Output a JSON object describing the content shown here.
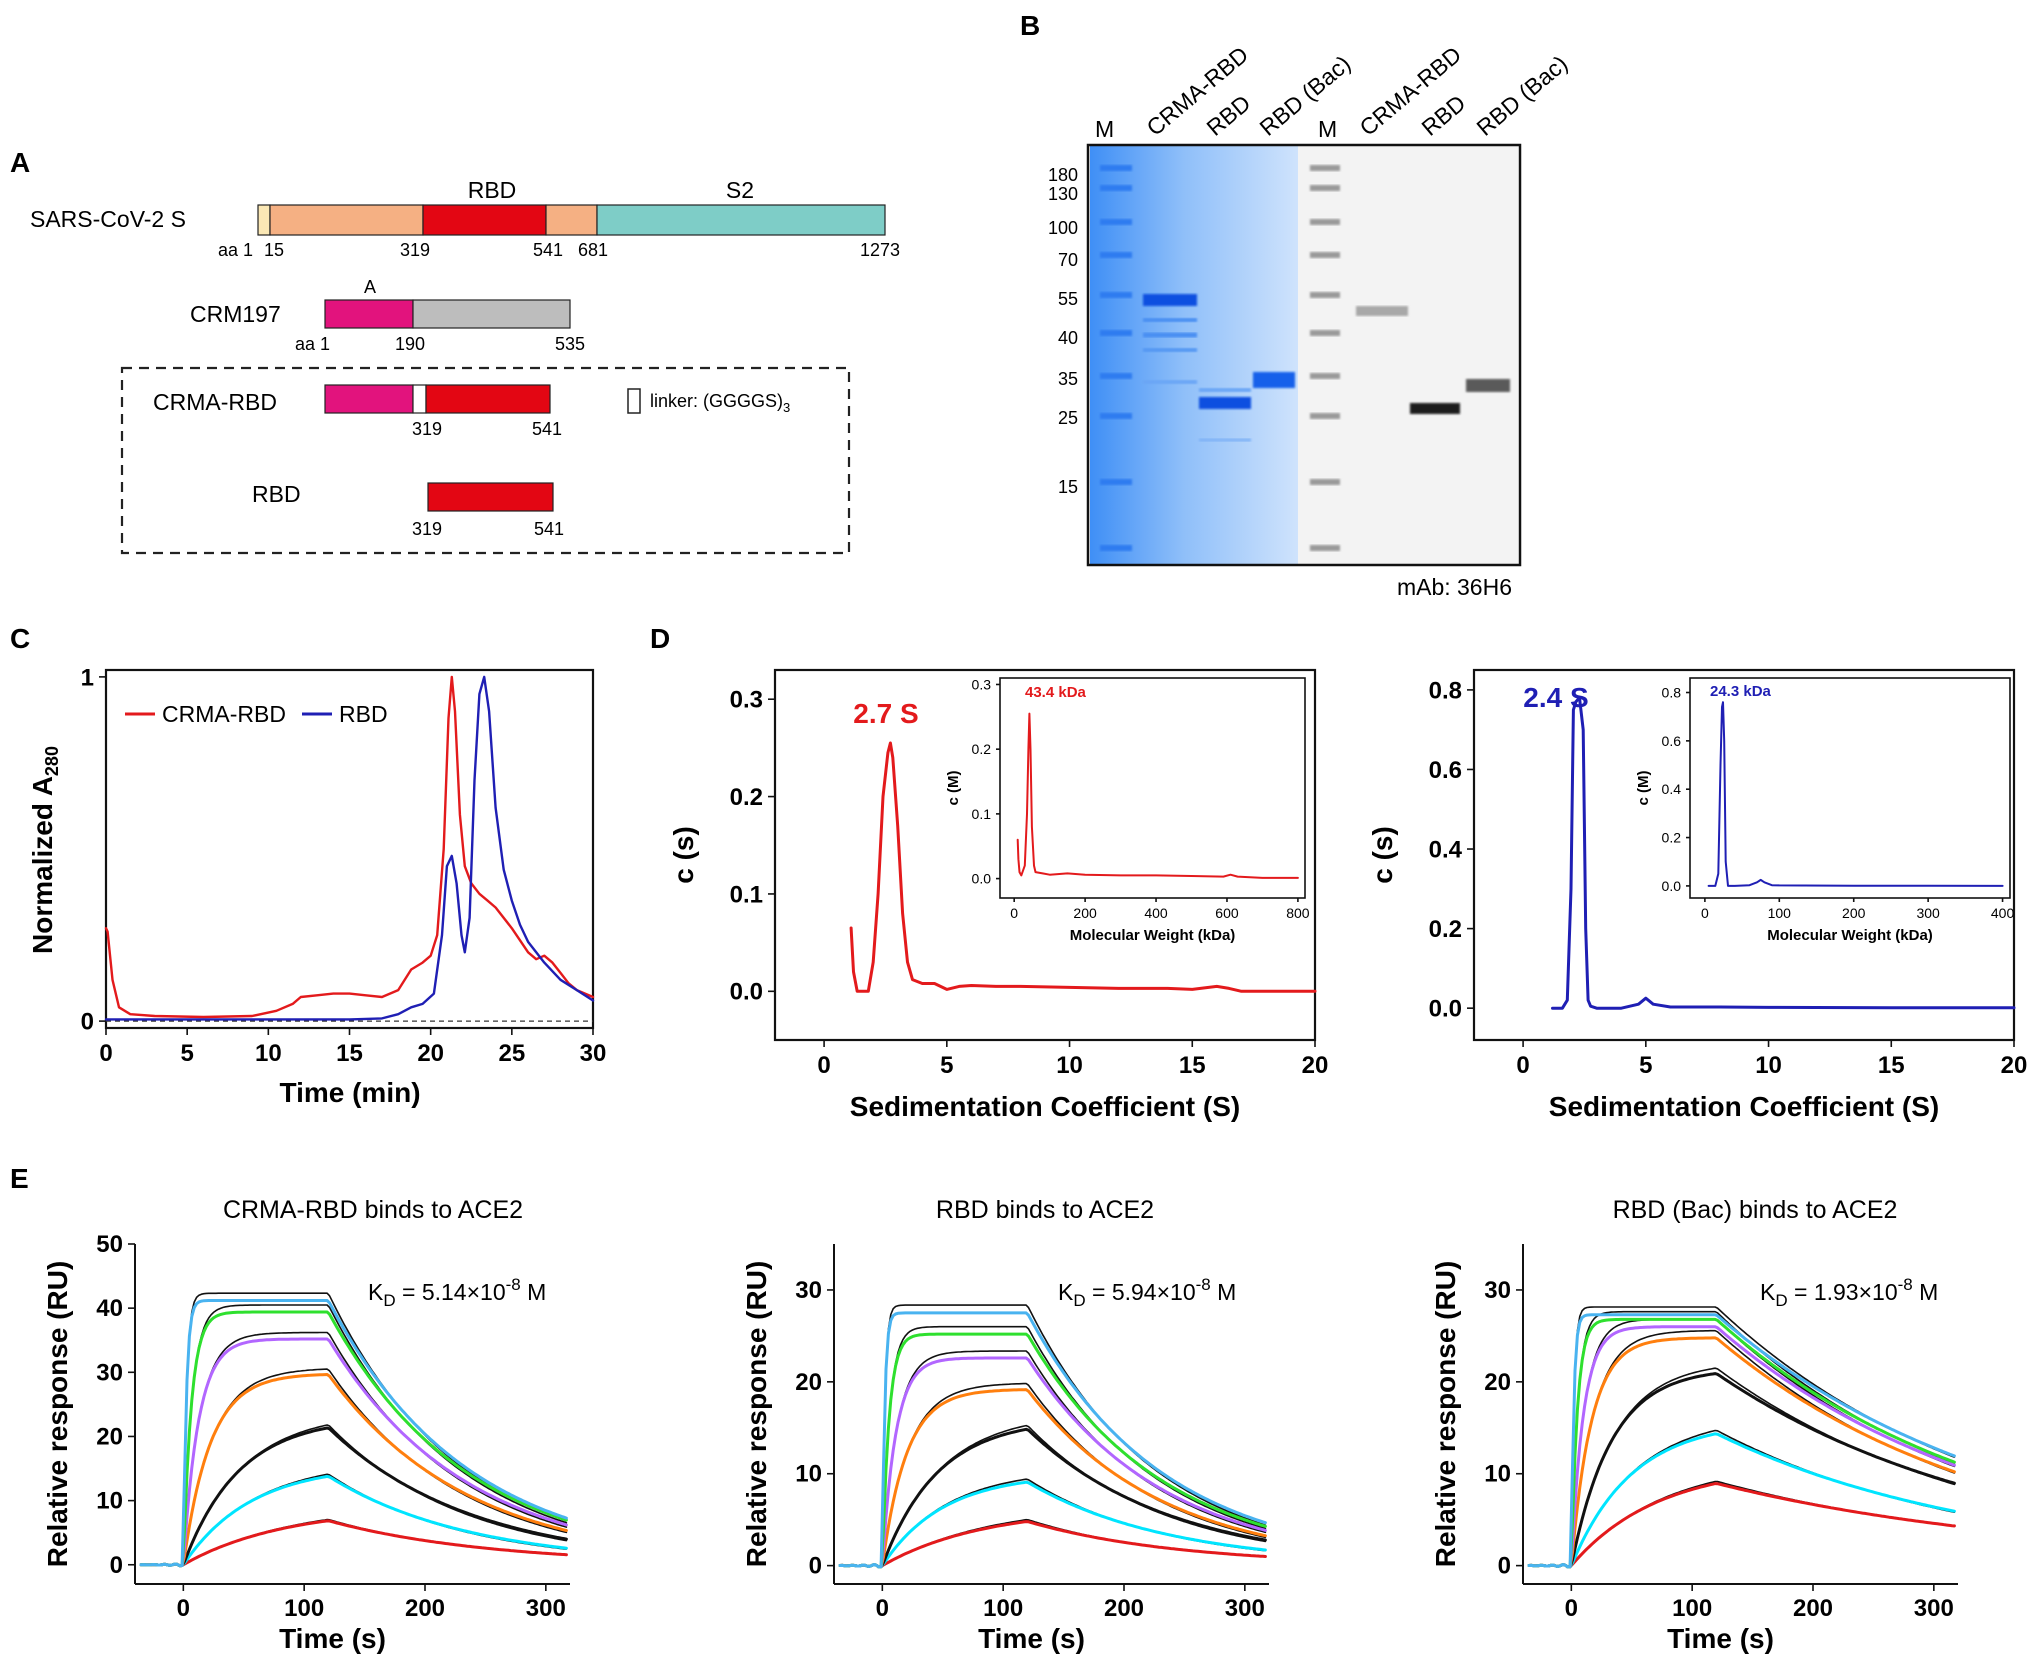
{
  "panel_labels": {
    "a": "A",
    "b": "B",
    "c": "C",
    "d": "D",
    "e": "E"
  },
  "colors": {
    "nterm": "#fbe8b5",
    "orange": "#f5b083",
    "rbd_red": "#e30613",
    "s2_teal": "#7ecdc7",
    "crm_magenta": "#e2137d",
    "crm_gray": "#bdbdbd",
    "linker": "#ffffff",
    "coomassie": "#2f86f5",
    "series_red": "#e31a1c",
    "series_blue": "#1f1fb4"
  },
  "panel_a": {
    "spike": {
      "name": "SARS-CoV-2 S",
      "domain_rbd": "RBD",
      "domain_s2": "S2",
      "aa_prefix": "aa 1",
      "pos": [
        "15",
        "319",
        "541",
        "681",
        "1273"
      ]
    },
    "crm197": {
      "name": "CRM197",
      "domain_a": "A",
      "aa_prefix": "aa 1",
      "pos": [
        "190",
        "535"
      ]
    },
    "crma_rbd": {
      "name": "CRMA-RBD",
      "pos": [
        "319",
        "541"
      ]
    },
    "rbd": {
      "name": "RBD",
      "pos": [
        "319",
        "541"
      ]
    },
    "legend": {
      "linker_label": "linker: (GGGGS)",
      "linker_sub": "3"
    }
  },
  "panel_b": {
    "lanes": [
      "M",
      "CRMA-RBD",
      "RBD",
      "RBD (Bac)",
      "M",
      "CRMA-RBD",
      "RBD",
      "RBD (Bac)"
    ],
    "markers": [
      "180",
      "130",
      "100",
      "70",
      "55",
      "40",
      "35",
      "25",
      "15"
    ],
    "antibody": "mAb: 36H6"
  },
  "chart_data": [
    {
      "id": "C",
      "type": "line",
      "xlabel": "Time (min)",
      "ylabel_main": "Normalized A",
      "ylabel_sub": "280",
      "xlim": [
        0,
        30
      ],
      "ylim": [
        0,
        1
      ],
      "xticks": [
        "0",
        "5",
        "10",
        "15",
        "20",
        "25",
        "30"
      ],
      "yticks": [
        "0",
        "1"
      ],
      "series": [
        {
          "name": "CRMA-RBD",
          "color": "#e31a1c",
          "x": [
            0,
            0.1,
            0.4,
            0.8,
            1.5,
            3,
            6,
            9,
            10.5,
            11.5,
            12,
            13,
            14,
            15,
            16,
            17,
            18,
            18.8,
            19.5,
            20,
            20.4,
            20.8,
            21.1,
            21.3,
            21.5,
            21.8,
            22.1,
            22.5,
            23,
            23.5,
            24,
            25,
            26,
            26.5,
            27,
            27.5,
            28,
            28.5,
            29,
            30
          ],
          "y": [
            0.27,
            0.26,
            0.12,
            0.04,
            0.02,
            0.015,
            0.012,
            0.015,
            0.03,
            0.05,
            0.07,
            0.075,
            0.08,
            0.08,
            0.075,
            0.07,
            0.09,
            0.15,
            0.17,
            0.19,
            0.25,
            0.5,
            0.88,
            1.0,
            0.9,
            0.6,
            0.45,
            0.4,
            0.37,
            0.35,
            0.33,
            0.27,
            0.2,
            0.18,
            0.19,
            0.17,
            0.14,
            0.11,
            0.09,
            0.07
          ]
        },
        {
          "name": "RBD",
          "color": "#1f1fb4",
          "x": [
            0,
            1,
            5,
            10,
            15,
            17,
            18,
            18.8,
            19.5,
            20.2,
            20.7,
            21,
            21.3,
            21.6,
            21.9,
            22.1,
            22.4,
            22.7,
            23,
            23.3,
            23.6,
            24,
            24.5,
            25,
            25.5,
            26,
            27,
            28,
            29,
            30
          ],
          "y": [
            0.005,
            0.005,
            0.005,
            0.005,
            0.005,
            0.008,
            0.02,
            0.04,
            0.05,
            0.08,
            0.25,
            0.45,
            0.48,
            0.4,
            0.25,
            0.2,
            0.3,
            0.7,
            0.95,
            1.0,
            0.9,
            0.62,
            0.44,
            0.35,
            0.28,
            0.23,
            0.17,
            0.12,
            0.09,
            0.06
          ]
        }
      ]
    },
    {
      "id": "D-left",
      "type": "line",
      "xlabel": "Sedimentation Coefficient (S)",
      "ylabel": "c (s)",
      "annotation": "2.7 S",
      "xlim": [
        -2,
        20
      ],
      "ylim": [
        -0.05,
        0.33
      ],
      "xticks": [
        "0",
        "5",
        "10",
        "15",
        "20"
      ],
      "yticks": [
        "0.0",
        "0.1",
        "0.2",
        "0.3"
      ],
      "series": [
        {
          "name": "CRMA-RBD",
          "color": "#e31a1c",
          "x": [
            1.1,
            1.2,
            1.35,
            1.5,
            1.8,
            2.0,
            2.2,
            2.4,
            2.6,
            2.7,
            2.8,
            3.0,
            3.2,
            3.4,
            3.6,
            4,
            4.5,
            5,
            5.5,
            6,
            7,
            8,
            10,
            12,
            14,
            15,
            16,
            16.5,
            17,
            18,
            20
          ],
          "y": [
            0.065,
            0.02,
            0.0,
            0.0,
            0.0,
            0.03,
            0.1,
            0.2,
            0.245,
            0.255,
            0.24,
            0.17,
            0.08,
            0.03,
            0.012,
            0.008,
            0.008,
            0.002,
            0.005,
            0.006,
            0.005,
            0.005,
            0.004,
            0.003,
            0.003,
            0.002,
            0.005,
            0.003,
            0.0,
            0.0,
            0.0
          ]
        }
      ],
      "inset": {
        "xlabel": "Molecular Weight (kDa)",
        "ylabel": "c (M)",
        "annotation": "43.4 kDa",
        "xlim": [
          -40,
          820
        ],
        "ylim": [
          -0.03,
          0.31
        ],
        "xticks": [
          "0",
          "200",
          "400",
          "600",
          "800"
        ],
        "yticks": [
          "0.0",
          "0.1",
          "0.2",
          "0.3"
        ],
        "x": [
          10,
          12,
          15,
          20,
          30,
          36,
          40,
          43,
          46,
          50,
          56,
          60,
          80,
          100,
          150,
          200,
          300,
          400,
          500,
          590,
          610,
          630,
          700,
          800
        ],
        "y": [
          0.06,
          0.03,
          0.01,
          0.005,
          0.02,
          0.1,
          0.2,
          0.255,
          0.2,
          0.08,
          0.02,
          0.01,
          0.008,
          0.006,
          0.008,
          0.006,
          0.005,
          0.005,
          0.004,
          0.003,
          0.006,
          0.003,
          0.001,
          0.001
        ]
      }
    },
    {
      "id": "D-right",
      "type": "line",
      "xlabel": "Sedimentation Coefficient (S)",
      "ylabel": "c (s)",
      "annotation": "2.4 S",
      "xlim": [
        -2,
        20
      ],
      "ylim": [
        -0.08,
        0.85
      ],
      "xticks": [
        "0",
        "5",
        "10",
        "15",
        "20"
      ],
      "yticks": [
        "0.0",
        "0.2",
        "0.4",
        "0.6",
        "0.8"
      ],
      "series": [
        {
          "name": "RBD",
          "color": "#1f1fb4",
          "x": [
            1.2,
            1.6,
            1.8,
            1.95,
            2.05,
            2.15,
            2.3,
            2.45,
            2.55,
            2.65,
            2.75,
            3,
            4,
            4.7,
            5,
            5.3,
            6,
            8,
            10,
            15,
            20
          ],
          "y": [
            0.0,
            0.0,
            0.02,
            0.3,
            0.75,
            0.77,
            0.78,
            0.7,
            0.2,
            0.02,
            0.005,
            0.0,
            0.0,
            0.01,
            0.025,
            0.01,
            0.003,
            0.003,
            0.002,
            0.001,
            0.001
          ]
        }
      ],
      "inset": {
        "xlabel": "Molecular Weight (kDa)",
        "ylabel": "c (M)",
        "annotation": "24.3 kDa",
        "xlim": [
          -20,
          410
        ],
        "ylim": [
          -0.05,
          0.86
        ],
        "xticks": [
          "0",
          "100",
          "200",
          "300",
          "400"
        ],
        "yticks": [
          "0.0",
          "0.2",
          "0.4",
          "0.6",
          "0.8"
        ],
        "x": [
          5,
          14,
          18,
          21,
          23,
          24.3,
          26,
          28,
          31,
          40,
          60,
          70,
          75,
          80,
          90,
          100,
          200,
          300,
          400
        ],
        "y": [
          0.0,
          0.0,
          0.05,
          0.5,
          0.74,
          0.76,
          0.6,
          0.1,
          0.0,
          0.0,
          0.003,
          0.015,
          0.025,
          0.015,
          0.003,
          0.002,
          0.001,
          0.001,
          0.0
        ]
      }
    },
    {
      "id": "E1",
      "type": "line",
      "title": "CRMA-RBD binds to ACE2",
      "kd_text": "K",
      "kd_sub": "D",
      "kd_value": " = 5.14×10",
      "kd_exp": "-8",
      "kd_unit": " M",
      "xlabel": "Time (s)",
      "ylabel": "Relative response (RU)",
      "xlim": [
        -40,
        320
      ],
      "ylim": [
        -3,
        50
      ],
      "xticks": [
        "0",
        "100",
        "200",
        "300"
      ],
      "yticks": [
        "0",
        "10",
        "20",
        "30",
        "40",
        "50"
      ],
      "series": [
        {
          "color": "#e31a1c",
          "plateau": 9.0,
          "kon": 0.012,
          "koff": 0.0075
        },
        {
          "color": "#00e5ff",
          "plateau": 15.6,
          "kon": 0.018,
          "koff": 0.0085
        },
        {
          "color": "#111111",
          "plateau": 23.0,
          "kon": 0.022,
          "koff": 0.0085
        },
        {
          "color": "#ff7f0e",
          "plateau": 29.8,
          "kon": 0.045,
          "koff": 0.0087
        },
        {
          "color": "#b266ff",
          "plateau": 35.2,
          "kon": 0.08,
          "koff": 0.0088
        },
        {
          "color": "#2ee02e",
          "plateau": 39.4,
          "kon": 0.15,
          "koff": 0.0088
        },
        {
          "color": "#49b3f0",
          "plateau": 41.2,
          "kon": 0.4,
          "koff": 0.0088
        }
      ]
    },
    {
      "id": "E2",
      "type": "line",
      "title": "RBD binds to ACE2",
      "kd_text": "K",
      "kd_sub": "D",
      "kd_value": " = 5.94×10",
      "kd_exp": "-8",
      "kd_unit": " M",
      "xlabel": "Time (s)",
      "ylabel": "Relative response (RU)",
      "xlim": [
        -40,
        320
      ],
      "ylim": [
        -2,
        35
      ],
      "xticks": [
        "0",
        "100",
        "200",
        "300"
      ],
      "yticks": [
        "0",
        "10",
        "20",
        "30"
      ],
      "series": [
        {
          "color": "#e31a1c",
          "plateau": 6.3,
          "kon": 0.012,
          "koff": 0.008
        },
        {
          "color": "#00e5ff",
          "plateau": 10.0,
          "kon": 0.02,
          "koff": 0.0085
        },
        {
          "color": "#111111",
          "plateau": 16.0,
          "kon": 0.022,
          "koff": 0.0085
        },
        {
          "color": "#ff7f0e",
          "plateau": 19.2,
          "kon": 0.05,
          "koff": 0.009
        },
        {
          "color": "#b266ff",
          "plateau": 22.6,
          "kon": 0.09,
          "koff": 0.009
        },
        {
          "color": "#2ee02e",
          "plateau": 25.2,
          "kon": 0.18,
          "koff": 0.009
        },
        {
          "color": "#49b3f0",
          "plateau": 27.5,
          "kon": 0.5,
          "koff": 0.009
        }
      ]
    },
    {
      "id": "E3",
      "type": "line",
      "title": "RBD (Bac) binds to ACE2",
      "kd_text": "K",
      "kd_sub": "D",
      "kd_value": " = 1.93×10",
      "kd_exp": "-8",
      "kd_unit": " M",
      "xlabel": "Time (s)",
      "ylabel": "Relative response (RU)",
      "xlim": [
        -40,
        320
      ],
      "ylim": [
        -2,
        35
      ],
      "xticks": [
        "0",
        "100",
        "200",
        "300"
      ],
      "yticks": [
        "0",
        "10",
        "20",
        "30"
      ],
      "series": [
        {
          "color": "#e31a1c",
          "plateau": 11.0,
          "kon": 0.014,
          "koff": 0.0037
        },
        {
          "color": "#00e5ff",
          "plateau": 15.8,
          "kon": 0.02,
          "koff": 0.0045
        },
        {
          "color": "#111111",
          "plateau": 21.5,
          "kon": 0.03,
          "koff": 0.0043
        },
        {
          "color": "#ff7f0e",
          "plateau": 24.8,
          "kon": 0.06,
          "koff": 0.0045
        },
        {
          "color": "#b266ff",
          "plateau": 26.0,
          "kon": 0.1,
          "koff": 0.0044
        },
        {
          "color": "#2ee02e",
          "plateau": 26.8,
          "kon": 0.2,
          "koff": 0.0044
        },
        {
          "color": "#49b3f0",
          "plateau": 27.3,
          "kon": 0.5,
          "koff": 0.0042
        }
      ]
    }
  ]
}
